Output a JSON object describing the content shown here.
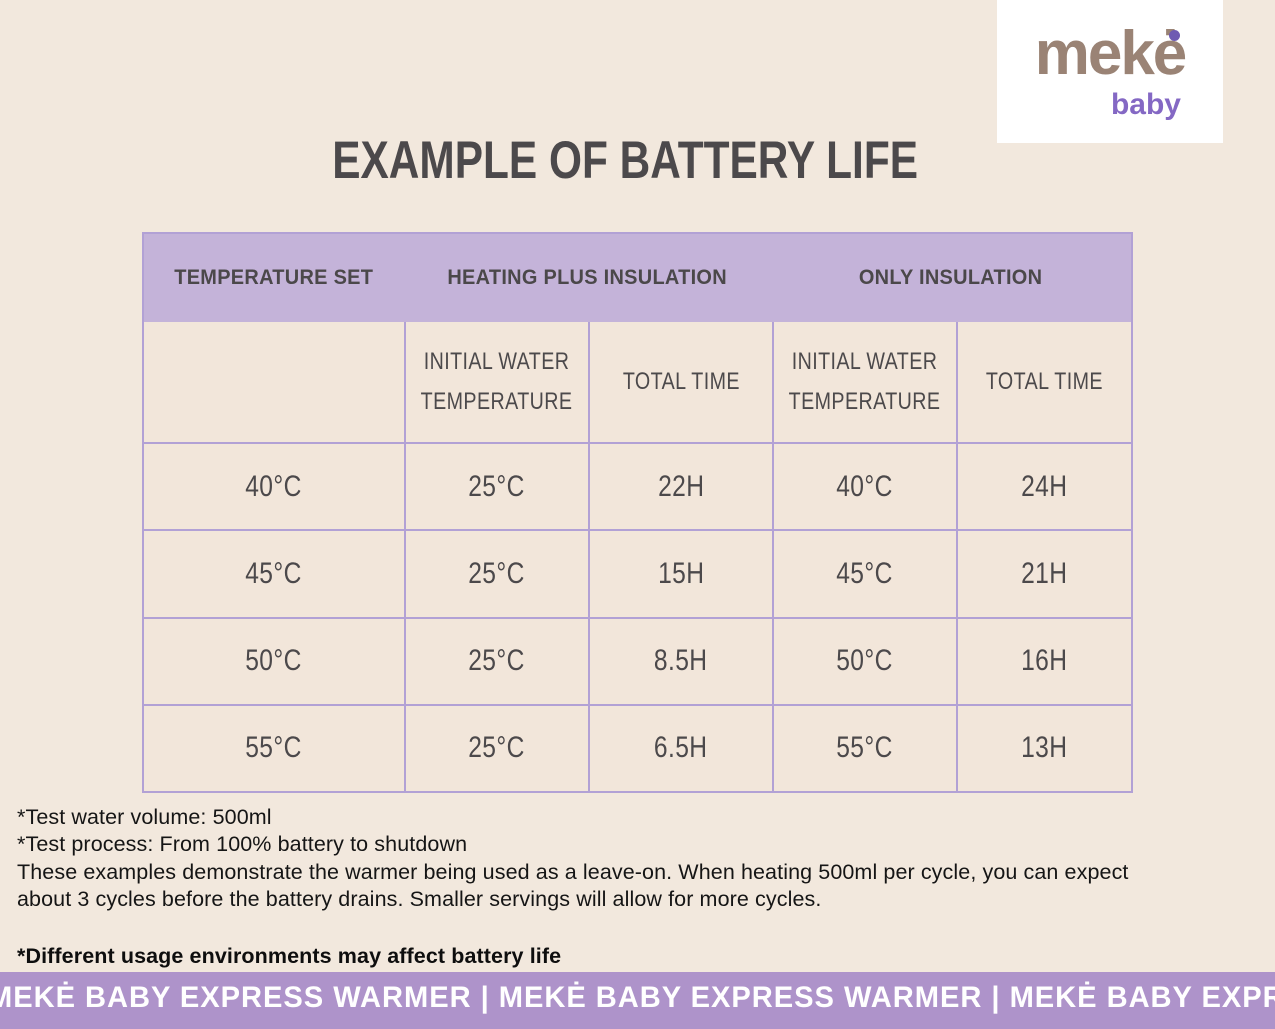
{
  "logo": {
    "wordmark": "mekė",
    "subbrand": "baby"
  },
  "title": "EXAMPLE OF BATTERY LIFE",
  "table": {
    "columns": [
      "TEMPERATURE SET",
      "HEATING PLUS INSULATION",
      "ONLY INSULATION"
    ],
    "sub_columns": [
      "INITIAL WATER TEMPERATURE",
      "TOTAL TIME",
      "INITIAL WATER TEMPERATURE",
      "TOTAL TIME"
    ],
    "rows": [
      [
        "40°C",
        "25°C",
        "22H",
        "40°C",
        "24H"
      ],
      [
        "45°C",
        "25°C",
        "15H",
        "45°C",
        "21H"
      ],
      [
        "50°C",
        "25°C",
        "8.5H",
        "50°C",
        "16H"
      ],
      [
        "55°C",
        "25°C",
        "6.5H",
        "55°C",
        "13H"
      ]
    ]
  },
  "notes": {
    "line1": "*Test water volume: 500ml",
    "line2": "*Test process: From 100% battery to shutdown",
    "para_line1": "These examples demonstrate the warmer being used as a leave-on. When heating 500ml per cycle, you can expect",
    "para_line2": "about 3 cycles before the battery drains. Smaller servings will allow for more cycles.",
    "bold": "*Different usage environments may affect battery life"
  },
  "banner": {
    "text": "MEKĖ BABY EXPRESS WARMER | MEKĖ BABY EXPRESS WARMER | MEKĖ BABY EXPRESS WARMER"
  },
  "colors": {
    "page_bg": "#F2E8DD",
    "table_header_bg": "#C4B3D9",
    "table_border": "#B2A1D5",
    "cell_bg": "#F2E6DA",
    "banner_bg": "#AE93CA",
    "text_dark": "#4B484A",
    "brand_taupe": "#9A8375",
    "brand_purple": "#8468C4"
  }
}
